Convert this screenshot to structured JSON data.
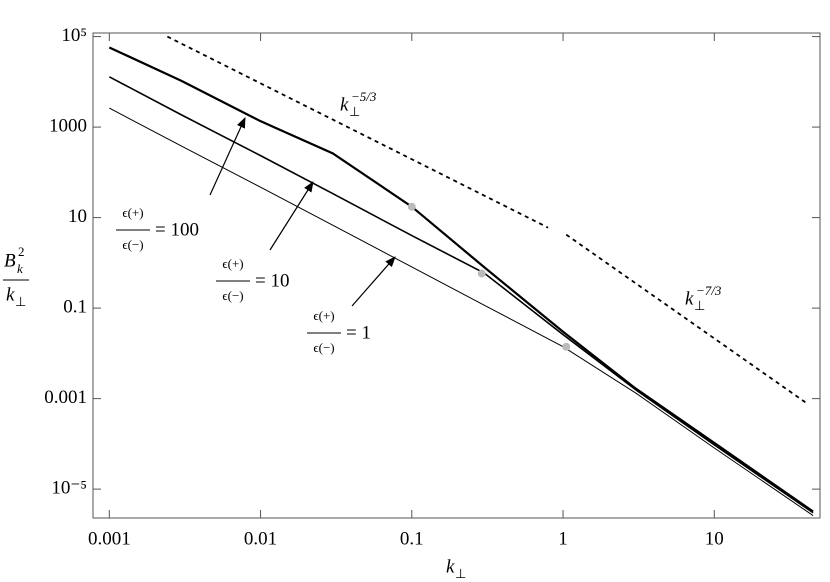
{
  "chart_data": {
    "type": "line",
    "xscale": "log",
    "yscale": "log",
    "xlabel": {
      "base": "k",
      "sub": "⊥"
    },
    "ylabel": {
      "base": "B",
      "sub": "k",
      "sup": "2",
      "denominator_base": "k",
      "denominator_sub": "⊥"
    },
    "xlim": [
      0.00078,
      50
    ],
    "ylim": [
      2.3e-06,
      120000
    ],
    "xticks": [
      0.001,
      0.01,
      0.1,
      1,
      10
    ],
    "yticks": [
      {
        "value": 1e-05,
        "label": "10⁻⁵"
      },
      0.001,
      0.1,
      10,
      1000,
      {
        "value": 100000,
        "label": "10⁵"
      }
    ],
    "x": [
      0.001,
      0.003,
      0.01,
      0.03,
      0.1,
      0.3,
      1,
      3,
      10,
      45
    ],
    "series": [
      {
        "color": "#000000",
        "label": {
          "numerator": "ϵ(+)",
          "denominator": "ϵ(−)",
          "text": "= 100"
        },
        "values": [
          57500,
          10500,
          1350,
          263,
          17.4,
          0.81,
          0.03,
          0.0017,
          0.000105,
          3.2e-06
        ]
      },
      {
        "color": "#000000",
        "label": {
          "numerator": "ϵ(+)",
          "denominator": "ϵ(−)",
          "text": "= 10"
        },
        "values": [
          12900,
          1860,
          234,
          34,
          4.0,
          0.6,
          0.026,
          0.0016,
          9.5e-05,
          3e-06
        ]
      },
      {
        "color": "#000000",
        "label": {
          "numerator": "ϵ(+)",
          "denominator": "ϵ(−)",
          "text": "= 1"
        },
        "values": [
          2630,
          380,
          47,
          6.8,
          0.81,
          0.117,
          0.014,
          0.00135,
          8.1e-05,
          2.6e-06
        ]
      }
    ],
    "markers": {
      "color": "#bbbbbb",
      "x": [
        0.1,
        0.29,
        1.05
      ],
      "y": [
        17.4,
        0.58,
        0.014
      ]
    },
    "reference_lines": [
      {
        "label": {
          "base": "k",
          "sub": "⊥",
          "sup": "−5/3"
        },
        "x": [
          0.00242,
          0.796
        ],
        "y": [
          100000,
          6.0
        ]
      },
      {
        "label": {
          "base": "k",
          "sub": "⊥",
          "sup": "−7/3"
        },
        "x": [
          1.05,
          42
        ],
        "y": [
          4.2,
          0.00074
        ]
      }
    ]
  }
}
